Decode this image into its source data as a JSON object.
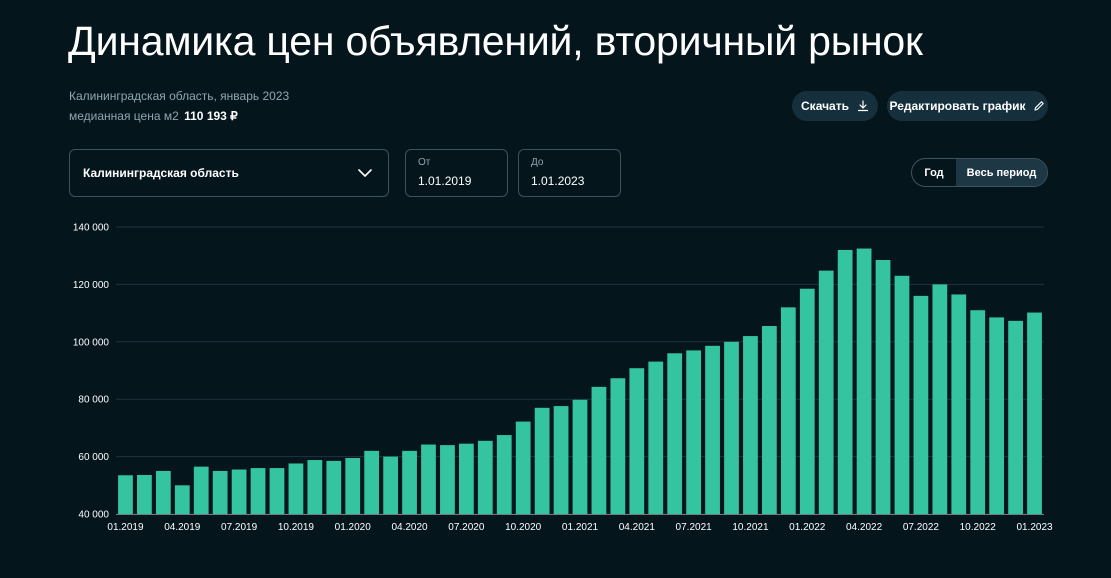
{
  "page": {
    "title": "Динамика цен объявлений, вторичный рынок",
    "subtitle": "Калининградская область, январь 2023",
    "median_label": "медианная цена м2",
    "median_value": "110 193 ₽"
  },
  "toolbar": {
    "download_label": "Скачать",
    "download_icon": "download-icon",
    "edit_label": "Редактировать график",
    "edit_icon": "pencil-icon"
  },
  "filters": {
    "region_value": "Калининградская область",
    "from_label": "От",
    "from_value": "1.01.2019",
    "to_label": "До",
    "to_value": "1.01.2023",
    "period_options": [
      "Год",
      "Весь период"
    ],
    "period_selected": "Весь период"
  },
  "colors": {
    "background": "#05151c",
    "bar": "#35c4a0",
    "grid": "#1e3440",
    "button_bg": "#15303c"
  },
  "chart_data": {
    "type": "bar",
    "title": "",
    "xlabel": "",
    "ylabel": "",
    "ylim": [
      40000,
      140000
    ],
    "yticks": [
      "40 000",
      "60 000",
      "80 000",
      "100 000",
      "120 000",
      "140 000"
    ],
    "grid": true,
    "x_tick_labels": [
      "01.2019",
      "04.2019",
      "07.2019",
      "10.2019",
      "01.2020",
      "04.2020",
      "07.2020",
      "10.2020",
      "01.2021",
      "04.2021",
      "07.2021",
      "10.2021",
      "01.2022",
      "04.2022",
      "07.2022",
      "10.2022",
      "01.2023"
    ],
    "categories": [
      "01.2019",
      "02.2019",
      "03.2019",
      "04.2019",
      "05.2019",
      "06.2019",
      "07.2019",
      "08.2019",
      "09.2019",
      "10.2019",
      "11.2019",
      "12.2019",
      "01.2020",
      "02.2020",
      "03.2020",
      "04.2020",
      "05.2020",
      "06.2020",
      "07.2020",
      "08.2020",
      "09.2020",
      "10.2020",
      "11.2020",
      "12.2020",
      "01.2021",
      "02.2021",
      "03.2021",
      "04.2021",
      "05.2021",
      "06.2021",
      "07.2021",
      "08.2021",
      "09.2021",
      "10.2021",
      "11.2021",
      "12.2021",
      "01.2022",
      "02.2022",
      "03.2022",
      "04.2022",
      "05.2022",
      "06.2022",
      "07.2022",
      "08.2022",
      "09.2022",
      "10.2022",
      "11.2022",
      "12.2022",
      "01.2023"
    ],
    "series": [
      {
        "values": [
          53500,
          53600,
          55000,
          50000,
          56500,
          55000,
          55500,
          56000,
          56000,
          57600,
          58800,
          58500,
          59500,
          62000,
          60000,
          62000,
          64200,
          64000,
          64500,
          65500,
          67500,
          72200,
          77000,
          77600,
          79800,
          84300,
          87300,
          90800,
          93100,
          96000,
          97000,
          98600,
          100000,
          102000,
          105500,
          112000,
          118500,
          124800,
          132000,
          132500,
          128500,
          123000,
          116000,
          120000,
          116500,
          111000,
          108500,
          107300,
          110193
        ]
      }
    ]
  }
}
